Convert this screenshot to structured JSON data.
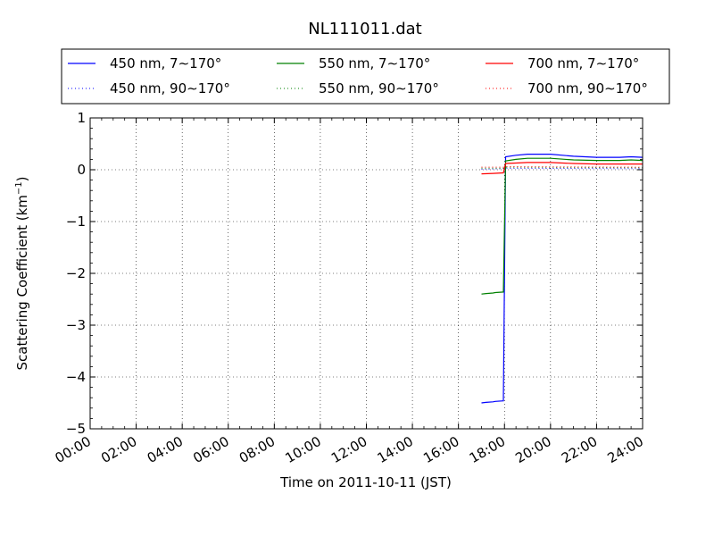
{
  "chart_data": {
    "type": "line",
    "title": "NL111011.dat",
    "xlabel": "Time on 2011-10-11 (JST)",
    "ylabel": "Scattering Coefficient (km",
    "ylabel_exp": "−1",
    "ylabel_close": ")",
    "xlim": [
      0,
      24
    ],
    "ylim": [
      -5,
      1
    ],
    "grid": true,
    "legend_position": "top",
    "x_ticks": [
      {
        "value": 0,
        "label": "00:00"
      },
      {
        "value": 2,
        "label": "02:00"
      },
      {
        "value": 4,
        "label": "04:00"
      },
      {
        "value": 6,
        "label": "06:00"
      },
      {
        "value": 8,
        "label": "08:00"
      },
      {
        "value": 10,
        "label": "10:00"
      },
      {
        "value": 12,
        "label": "12:00"
      },
      {
        "value": 14,
        "label": "14:00"
      },
      {
        "value": 16,
        "label": "16:00"
      },
      {
        "value": 18,
        "label": "18:00"
      },
      {
        "value": 20,
        "label": "20:00"
      },
      {
        "value": 22,
        "label": "22:00"
      },
      {
        "value": 24,
        "label": "24:00"
      }
    ],
    "y_ticks": [
      {
        "value": 1,
        "label": "1"
      },
      {
        "value": 0,
        "label": "0"
      },
      {
        "value": -1,
        "label": "−1"
      },
      {
        "value": -2,
        "label": "−2"
      },
      {
        "value": -3,
        "label": "−3"
      },
      {
        "value": -4,
        "label": "−4"
      },
      {
        "value": -5,
        "label": "−5"
      }
    ],
    "series": [
      {
        "name": "450 nm, 7∼170°",
        "color": "#0000ff",
        "style": "solid",
        "x": [
          17.0,
          17.2,
          17.5,
          17.6,
          17.95,
          18.05,
          18.5,
          19.0,
          20.0,
          21.0,
          22.0,
          23.0,
          23.5,
          24.0
        ],
        "y": [
          -4.5,
          -4.49,
          -4.48,
          -4.47,
          -4.46,
          0.25,
          0.28,
          0.3,
          0.3,
          0.26,
          0.24,
          0.24,
          0.25,
          0.24
        ]
      },
      {
        "name": "450 nm, 90∼170°",
        "color": "#0000ff",
        "style": "dotted",
        "x": [
          17.0,
          17.95,
          18.05,
          24.0
        ],
        "y": [
          0.01,
          0.02,
          0.03,
          0.02
        ]
      },
      {
        "name": "550 nm, 7∼170°",
        "color": "#008000",
        "style": "solid",
        "x": [
          17.0,
          17.2,
          17.5,
          17.6,
          17.95,
          18.05,
          18.5,
          19.0,
          20.0,
          21.0,
          22.0,
          23.0,
          23.5,
          24.0
        ],
        "y": [
          -2.4,
          -2.39,
          -2.38,
          -2.37,
          -2.36,
          0.17,
          0.2,
          0.22,
          0.22,
          0.19,
          0.18,
          0.18,
          0.19,
          0.18
        ]
      },
      {
        "name": "550 nm, 90∼170°",
        "color": "#008000",
        "style": "dotted",
        "x": [
          17.0,
          17.95,
          18.05,
          24.0
        ],
        "y": [
          0.03,
          0.03,
          0.05,
          0.04
        ]
      },
      {
        "name": "700 nm, 7∼170°",
        "color": "#ff0000",
        "style": "solid",
        "x": [
          17.0,
          17.5,
          17.95,
          18.05,
          18.5,
          19.0,
          20.0,
          21.0,
          22.0,
          23.0,
          24.0
        ],
        "y": [
          -0.08,
          -0.07,
          -0.06,
          0.12,
          0.13,
          0.14,
          0.14,
          0.12,
          0.11,
          0.11,
          0.11
        ]
      },
      {
        "name": "700 nm, 90∼170°",
        "color": "#ff0000",
        "style": "dotted",
        "x": [
          17.0,
          17.95,
          18.05,
          24.0
        ],
        "y": [
          0.05,
          0.05,
          0.06,
          0.05
        ]
      }
    ]
  }
}
